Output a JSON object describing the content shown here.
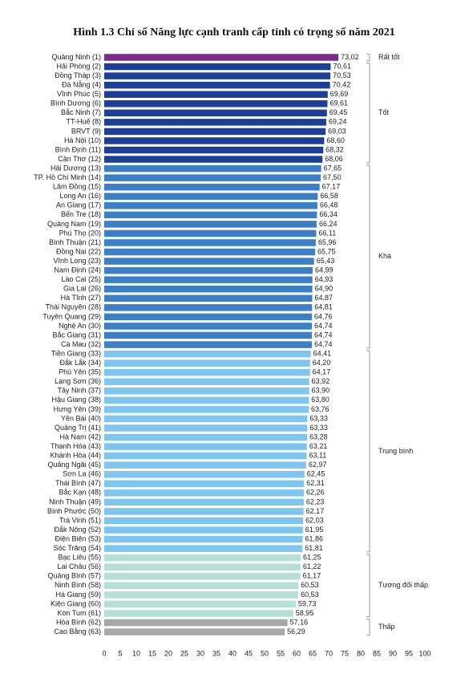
{
  "chart_data": {
    "type": "bar",
    "orientation": "horizontal",
    "title": "Hình 1.3 Chỉ số Năng lực cạnh tranh cấp tỉnh có trọng số năm 2021",
    "xlim": [
      0,
      100
    ],
    "xticks": [
      0,
      5,
      10,
      15,
      20,
      25,
      30,
      35,
      40,
      45,
      50,
      55,
      60,
      65,
      70,
      75,
      80,
      85,
      90,
      95,
      100
    ],
    "series": [
      {
        "name": "Rất tốt",
        "color": "#7b2a8e",
        "categories": [
          "Quảng Ninh (1)"
        ],
        "values": [
          73.02
        ],
        "value_labels": [
          "73,02"
        ]
      },
      {
        "name": "Tốt",
        "color": "#1d3f96",
        "categories": [
          "Hải Phòng (2)",
          "Đồng Tháp (3)",
          "Đà Nẵng (4)",
          "Vĩnh Phúc (5)",
          "Bình Dương (6)",
          "Bắc Ninh (7)",
          "TT-Huế (8)",
          "BRVT (9)",
          "Hà Nội (10)",
          "Bình Định (11)",
          "Cần Thơ (12)"
        ],
        "values": [
          70.61,
          70.53,
          70.42,
          69.69,
          69.61,
          69.45,
          69.24,
          69.03,
          68.6,
          68.32,
          68.06
        ],
        "value_labels": [
          "70,61",
          "70,53",
          "70,42",
          "69,69",
          "69,61",
          "69,45",
          "69,24",
          "69,03",
          "68,60",
          "68,32",
          "68,06"
        ]
      },
      {
        "name": "Khá",
        "color": "#3b7fc6",
        "categories": [
          "Hải Dương (13)",
          "TP. Hồ Chí Minh (14)",
          "Lâm Đồng (15)",
          "Long An (16)",
          "An Giang (17)",
          "Bến Tre (18)",
          "Quảng Nam (19)",
          "Phú Thọ (20)",
          "Bình Thuận (21)",
          "Đồng Nai (22)",
          "Vĩnh Long (23)",
          "Nam Định (24)",
          "Lào Cai (25)",
          "Gia Lai (26)",
          "Hà Tĩnh (27)",
          "Thái Nguyên (28)",
          "Tuyên Quang (29)",
          "Nghệ An (30)",
          "Bắc Giang (31)",
          "Cà Mau (32)"
        ],
        "values": [
          67.65,
          67.5,
          67.17,
          66.58,
          66.48,
          66.34,
          66.24,
          66.11,
          65.96,
          65.75,
          65.43,
          64.99,
          64.93,
          64.9,
          64.87,
          64.81,
          64.76,
          64.74,
          64.74,
          64.74
        ],
        "value_labels": [
          "67,65",
          "67,50",
          "67,17",
          "66,58",
          "66,48",
          "66,34",
          "66,24",
          "66,11",
          "65,96",
          "65,75",
          "65,43",
          "64,99",
          "64,93",
          "64,90",
          "64,87",
          "64,81",
          "64,76",
          "64,74",
          "64,74",
          "64,74"
        ]
      },
      {
        "name": "Trung bình",
        "color": "#7ec5ef",
        "categories": [
          "Tiền Giang (33)",
          "Đắk Lắk (34)",
          "Phú Yên (35)",
          "Lạng Sơn (36)",
          "Tây Ninh (37)",
          "Hậu Giang (38)",
          "Hưng Yên (39)",
          "Yên Bái (40)",
          "Quảng Trị (41)",
          "Hà Nam (42)",
          "Thanh Hóa (43)",
          "Khánh Hòa (44)",
          "Quảng Ngãi (45)",
          "Sơn La (46)",
          "Thái Bình (47)",
          "Bắc Kạn (48)",
          "Ninh Thuận (49)",
          "Bình Phước (50)",
          "Trà Vinh (51)",
          "Đắk Nông (52)",
          "Điện Biên (53)",
          "Sóc Trăng (54)"
        ],
        "values": [
          64.41,
          64.2,
          64.17,
          63.92,
          63.9,
          63.8,
          63.76,
          63.33,
          63.33,
          63.28,
          63.21,
          63.11,
          62.97,
          62.45,
          62.31,
          62.26,
          62.23,
          62.17,
          62.03,
          61.95,
          61.86,
          61.81
        ],
        "value_labels": [
          "64,41",
          "64,20",
          "64,17",
          "63,92",
          "63,90",
          "63,80",
          "63,76",
          "63,33",
          "63,33",
          "63,28",
          "63,21",
          "63,11",
          "62,97",
          "62,45",
          "62,31",
          "62,26",
          "62,23",
          "62,17",
          "62,03",
          "61,95",
          "61,86",
          "61,81"
        ]
      },
      {
        "name": "Tương đối thấp",
        "color": "#b5e0d5",
        "categories": [
          "Bạc Liêu (55)",
          "Lai Châu (56)",
          "Quảng Bình (57)",
          "Ninh Bình (58)",
          "Hà Giang (59)",
          "Kiên Giang (60)",
          "Kon Tum (61)"
        ],
        "values": [
          61.25,
          61.22,
          61.17,
          60.53,
          60.53,
          59.73,
          58.95
        ],
        "value_labels": [
          "61,25",
          "61,22",
          "61,17",
          "60,53",
          "60,53",
          "59,73",
          "58,95"
        ]
      },
      {
        "name": "Thấp",
        "color": "#a8a8a8",
        "categories": [
          "Hòa Bình (62)",
          "Cao Bằng (63)"
        ],
        "values": [
          57.16,
          56.29
        ],
        "value_labels": [
          "57,16",
          "56,29"
        ]
      }
    ]
  }
}
